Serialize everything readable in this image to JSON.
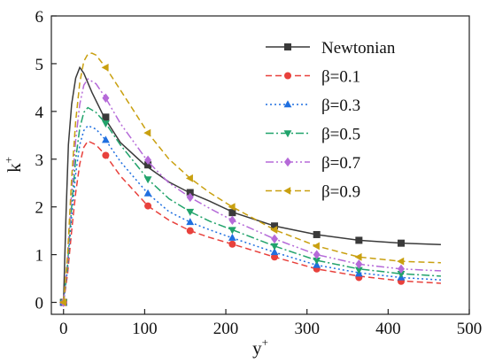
{
  "chart_data": {
    "type": "line",
    "xlabel": {
      "base": "y",
      "sup": "+"
    },
    "ylabel": {
      "base": "k",
      "sup": "+"
    },
    "xlim": [
      -15,
      500
    ],
    "ylim": [
      -0.25,
      6
    ],
    "xticks": [
      0,
      100,
      200,
      300,
      400,
      500
    ],
    "yticks": [
      0,
      1,
      2,
      3,
      4,
      5,
      6
    ],
    "grid": false,
    "legend_position": "top-right",
    "series": [
      {
        "name": "Newtonian",
        "color": "#3a3a3a",
        "dash": "solid",
        "marker": "square",
        "x": [
          0,
          3,
          6,
          10,
          15,
          20,
          25,
          35,
          50,
          70,
          100,
          130,
          155,
          180,
          210,
          260,
          312,
          364,
          416,
          465
        ],
        "y": [
          0,
          1.8,
          3.3,
          4.15,
          4.7,
          4.92,
          4.8,
          4.4,
          3.88,
          3.35,
          2.88,
          2.52,
          2.3,
          2.12,
          1.88,
          1.6,
          1.42,
          1.3,
          1.24,
          1.21
        ],
        "marker_x": [
          0,
          52,
          104,
          156,
          208,
          260,
          312,
          364,
          416
        ],
        "marker_y": [
          0,
          3.88,
          2.88,
          2.3,
          1.88,
          1.6,
          1.42,
          1.3,
          1.24
        ]
      },
      {
        "name": "β=0.1",
        "color": "#e8413c",
        "dash": "dashed",
        "marker": "circle",
        "x": [
          0,
          5,
          10,
          15,
          20,
          25,
          30,
          40,
          52,
          70,
          104,
          130,
          156,
          180,
          208,
          260,
          312,
          364,
          416,
          465
        ],
        "y": [
          0,
          0.6,
          1.5,
          2.3,
          2.9,
          3.25,
          3.38,
          3.3,
          3.08,
          2.65,
          2.02,
          1.72,
          1.5,
          1.36,
          1.22,
          0.95,
          0.7,
          0.55,
          0.45,
          0.4
        ],
        "marker_x": [
          0,
          52,
          104,
          156,
          208,
          260,
          312,
          364,
          416
        ],
        "marker_y": [
          0,
          3.08,
          2.02,
          1.5,
          1.22,
          0.95,
          0.7,
          0.52,
          0.44
        ]
      },
      {
        "name": "β=0.3",
        "color": "#1f6fe0",
        "dash": "dotted",
        "marker": "triangle-up",
        "x": [
          0,
          5,
          10,
          15,
          20,
          25,
          30,
          40,
          52,
          70,
          104,
          130,
          156,
          180,
          208,
          260,
          312,
          364,
          416,
          465
        ],
        "y": [
          0,
          0.7,
          1.8,
          2.7,
          3.3,
          3.6,
          3.7,
          3.63,
          3.4,
          2.95,
          2.28,
          1.9,
          1.68,
          1.52,
          1.35,
          1.05,
          0.78,
          0.62,
          0.52,
          0.47
        ],
        "marker_x": [
          0,
          52,
          104,
          156,
          208,
          260,
          312,
          364,
          416
        ],
        "marker_y": [
          0,
          3.4,
          2.28,
          1.68,
          1.35,
          1.05,
          0.78,
          0.6,
          0.52
        ]
      },
      {
        "name": "β=0.5",
        "color": "#21a36b",
        "dash": "dashdot",
        "marker": "triangle-down",
        "x": [
          0,
          5,
          10,
          15,
          20,
          25,
          30,
          40,
          52,
          70,
          104,
          130,
          156,
          180,
          208,
          260,
          312,
          364,
          416,
          465
        ],
        "y": [
          0,
          0.8,
          2.0,
          3.0,
          3.65,
          3.98,
          4.08,
          3.98,
          3.75,
          3.3,
          2.58,
          2.17,
          1.9,
          1.7,
          1.52,
          1.18,
          0.88,
          0.7,
          0.6,
          0.55
        ],
        "marker_x": [
          0,
          52,
          104,
          156,
          208,
          260,
          312,
          364,
          416
        ],
        "marker_y": [
          0,
          3.75,
          2.58,
          1.9,
          1.52,
          1.18,
          0.88,
          0.68,
          0.6
        ]
      },
      {
        "name": "β=0.7",
        "color": "#b56ad8",
        "dash": "dashdotdot",
        "marker": "diamond",
        "x": [
          0,
          5,
          10,
          15,
          20,
          25,
          30,
          40,
          52,
          70,
          104,
          130,
          156,
          180,
          208,
          260,
          312,
          364,
          416,
          465
        ],
        "y": [
          0,
          0.9,
          2.3,
          3.4,
          4.15,
          4.55,
          4.68,
          4.58,
          4.28,
          3.75,
          2.95,
          2.5,
          2.2,
          1.97,
          1.72,
          1.33,
          1.0,
          0.8,
          0.7,
          0.66
        ],
        "marker_x": [
          0,
          52,
          104,
          156,
          208,
          260,
          312,
          364,
          416
        ],
        "marker_y": [
          0,
          4.28,
          2.98,
          2.2,
          1.72,
          1.33,
          1.0,
          0.8,
          0.7
        ]
      },
      {
        "name": "β=0.9",
        "color": "#c9a010",
        "dash": "dashed",
        "marker": "triangle-left",
        "x": [
          0,
          5,
          10,
          15,
          20,
          25,
          30,
          35,
          40,
          52,
          70,
          104,
          130,
          156,
          180,
          208,
          260,
          312,
          364,
          416,
          465
        ],
        "y": [
          0,
          1.0,
          2.6,
          3.8,
          4.6,
          5.05,
          5.2,
          5.22,
          5.18,
          4.92,
          4.45,
          3.55,
          3.0,
          2.6,
          2.3,
          2.0,
          1.52,
          1.18,
          0.95,
          0.86,
          0.83
        ],
        "marker_x": [
          0,
          52,
          104,
          156,
          208,
          260,
          312,
          364,
          416
        ],
        "marker_y": [
          0,
          4.92,
          3.55,
          2.6,
          2.0,
          1.52,
          1.18,
          0.95,
          0.86
        ]
      }
    ]
  }
}
